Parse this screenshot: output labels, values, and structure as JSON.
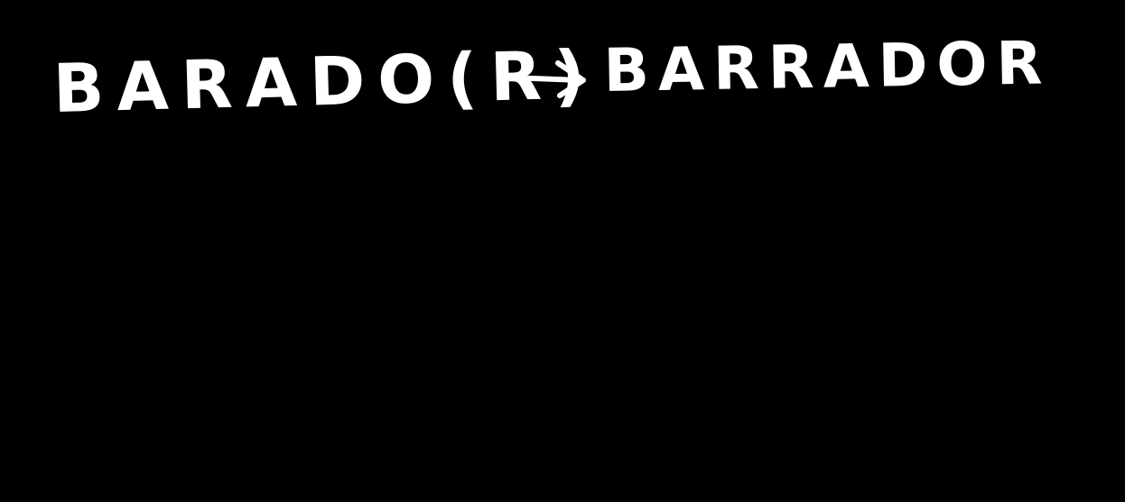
{
  "note": {
    "original_word": "BARADO(R)",
    "corrected_word": "BARRADOR",
    "arrow_icon": "right-arrow-icon",
    "colors": {
      "background": "#000000",
      "ink": "#ffffff"
    }
  }
}
